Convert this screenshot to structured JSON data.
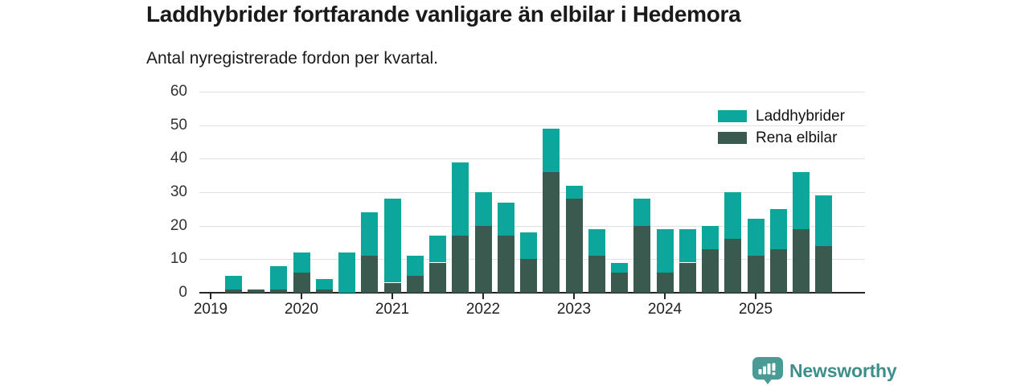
{
  "header": {
    "title": "Laddhybrider fortfarande vanligare än elbilar i Hedemora",
    "subtitle": "Antal nyregistrerade fordon per kvartal."
  },
  "branding": {
    "wordmark": "Newsworthy",
    "icon": "newsworthy-bar-chart-speech-bubble-icon",
    "wordmark_color": "#3d8f8b",
    "icon_color": "#4a9a95"
  },
  "chart_data": {
    "type": "bar",
    "stacked": true,
    "title": "Laddhybrider fortfarande vanligare än elbilar i Hedemora",
    "subtitle": "Antal nyregistrerade fordon per kvartal.",
    "xlabel": "",
    "ylabel": "",
    "ylim": [
      0,
      60
    ],
    "y_ticks": [
      0,
      10,
      20,
      30,
      40,
      50,
      60
    ],
    "x_tick_labels": [
      "2019",
      "2020",
      "2021",
      "2022",
      "2023",
      "2024",
      "2025"
    ],
    "grid": "horizontal",
    "legend_position": "top-right",
    "categories": [
      "2019 Q1",
      "2019 Q2",
      "2019 Q3",
      "2019 Q4",
      "2020 Q1",
      "2020 Q2",
      "2020 Q3",
      "2020 Q4",
      "2021 Q1",
      "2021 Q2",
      "2021 Q3",
      "2021 Q4",
      "2022 Q1",
      "2022 Q2",
      "2022 Q3",
      "2022 Q4",
      "2023 Q1",
      "2023 Q2",
      "2023 Q3",
      "2023 Q4",
      "2024 Q1",
      "2024 Q2",
      "2024 Q3",
      "2024 Q4",
      "2025 Q1",
      "2025 Q2",
      "2025 Q3",
      "2025 Q4"
    ],
    "series": [
      {
        "name": "Laddhybrider",
        "color": "#0ca69d",
        "stack_order": "top",
        "values": [
          0,
          4,
          0,
          7,
          6,
          3,
          12,
          13,
          25,
          6,
          8,
          22,
          10,
          10,
          8,
          13,
          4,
          8,
          3,
          8,
          13,
          10,
          7,
          14,
          11,
          12,
          17,
          15
        ]
      },
      {
        "name": "Rena elbilar",
        "color": "#3a5a50",
        "stack_order": "bottom",
        "values": [
          0,
          1,
          1,
          1,
          6,
          1,
          0,
          11,
          3,
          5,
          9,
          17,
          20,
          17,
          10,
          36,
          28,
          11,
          6,
          20,
          6,
          9,
          13,
          16,
          11,
          13,
          19,
          14
        ]
      }
    ],
    "stacked_totals": [
      0,
      5,
      1,
      8,
      12,
      4,
      12,
      24,
      28,
      11,
      17,
      39,
      30,
      27,
      18,
      49,
      32,
      19,
      9,
      28,
      19,
      19,
      20,
      30,
      22,
      25,
      36,
      29
    ]
  }
}
